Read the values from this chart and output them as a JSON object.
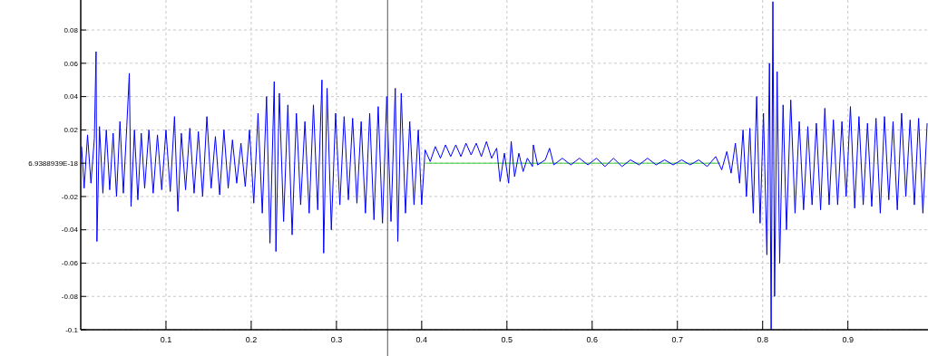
{
  "chart_data": {
    "type": "line",
    "xlim": [
      0,
      0.994
    ],
    "ylim": [
      -0.1,
      0.098
    ],
    "xticks": [
      0.1,
      0.2,
      0.3,
      0.4,
      0.5,
      0.6,
      0.7,
      0.8,
      0.9
    ],
    "yticks": [
      -0.1,
      -0.08,
      -0.06,
      -0.04,
      -0.02,
      {
        "value": 0,
        "label": "6.9388939E-18"
      },
      0.02,
      0.04,
      0.06,
      0.08
    ],
    "grid": true,
    "line_style": "solid",
    "marker": "none",
    "ref_lines": [
      {
        "axis": "x",
        "value": 0.36,
        "color": "#555555"
      }
    ],
    "series": [
      {
        "color": "#33cc33",
        "x": [
          0.405,
          0.75
        ],
        "values": [
          0,
          0
        ]
      },
      {
        "color": "#0000ff",
        "x": [
          0.001,
          0.004,
          0.008,
          0.012,
          0.016,
          0.018,
          0.019,
          0.022,
          0.026,
          0.03,
          0.034,
          0.038,
          0.042,
          0.046,
          0.05,
          0.054,
          0.057,
          0.059,
          0.063,
          0.067,
          0.071,
          0.075,
          0.08,
          0.085,
          0.09,
          0.095,
          0.1,
          0.105,
          0.11,
          0.114,
          0.118,
          0.123,
          0.128,
          0.133,
          0.138,
          0.143,
          0.148,
          0.153,
          0.158,
          0.163,
          0.168,
          0.173,
          0.178,
          0.183,
          0.188,
          0.193,
          0.198,
          0.203,
          0.208,
          0.213,
          0.218,
          0.222,
          0.227,
          0.229,
          0.233,
          0.238,
          0.243,
          0.248,
          0.253,
          0.258,
          0.263,
          0.268,
          0.273,
          0.278,
          0.283,
          0.285,
          0.289,
          0.294,
          0.299,
          0.304,
          0.309,
          0.314,
          0.319,
          0.324,
          0.329,
          0.334,
          0.339,
          0.344,
          0.349,
          0.354,
          0.359,
          0.364,
          0.369,
          0.372,
          0.376,
          0.381,
          0.386,
          0.391,
          0.396,
          0.4,
          0.404,
          0.41,
          0.416,
          0.422,
          0.428,
          0.434,
          0.44,
          0.446,
          0.452,
          0.458,
          0.464,
          0.47,
          0.476,
          0.482,
          0.488,
          0.492,
          0.497,
          0.502,
          0.505,
          0.509,
          0.514,
          0.519,
          0.524,
          0.53,
          0.531,
          0.536,
          0.545,
          0.55,
          0.555,
          0.565,
          0.575,
          0.585,
          0.595,
          0.605,
          0.615,
          0.625,
          0.635,
          0.645,
          0.655,
          0.665,
          0.675,
          0.685,
          0.695,
          0.705,
          0.715,
          0.725,
          0.735,
          0.745,
          0.752,
          0.758,
          0.763,
          0.768,
          0.773,
          0.777,
          0.781,
          0.785,
          0.789,
          0.793,
          0.797,
          0.801,
          0.805,
          0.808,
          0.81,
          0.812,
          0.814,
          0.817,
          0.82,
          0.824,
          0.828,
          0.833,
          0.838,
          0.843,
          0.848,
          0.853,
          0.858,
          0.863,
          0.868,
          0.873,
          0.878,
          0.883,
          0.888,
          0.893,
          0.898,
          0.903,
          0.908,
          0.913,
          0.918,
          0.923,
          0.928,
          0.933,
          0.938,
          0.943,
          0.948,
          0.953,
          0.958,
          0.963,
          0.968,
          0.973,
          0.978,
          0.983,
          0.988,
          0.993
        ],
        "values": [
          0.01,
          -0.015,
          0.017,
          -0.012,
          0.015,
          0.067,
          -0.047,
          0.022,
          -0.018,
          0.02,
          -0.016,
          0.018,
          -0.02,
          0.025,
          -0.018,
          0.022,
          0.054,
          -0.026,
          0.02,
          -0.022,
          0.018,
          -0.015,
          0.02,
          -0.018,
          0.017,
          -0.016,
          0.02,
          -0.017,
          0.028,
          -0.029,
          0.018,
          -0.016,
          0.021,
          -0.018,
          0.019,
          -0.02,
          0.028,
          -0.015,
          0.016,
          -0.019,
          0.02,
          -0.015,
          0.014,
          -0.012,
          0.012,
          -0.014,
          0.02,
          -0.024,
          0.03,
          -0.03,
          0.04,
          -0.048,
          0.049,
          -0.053,
          0.042,
          -0.035,
          0.035,
          -0.043,
          0.03,
          -0.025,
          0.025,
          -0.03,
          0.035,
          -0.028,
          0.05,
          -0.054,
          0.045,
          -0.04,
          0.03,
          -0.025,
          0.028,
          -0.022,
          0.027,
          -0.024,
          0.025,
          -0.03,
          0.03,
          -0.034,
          0.034,
          -0.036,
          0.04,
          -0.035,
          0.045,
          -0.047,
          0.042,
          -0.03,
          0.025,
          -0.025,
          0.02,
          -0.025,
          0.008,
          0.001,
          0.01,
          0.003,
          0.011,
          0.004,
          0.011,
          0.004,
          0.012,
          0.005,
          0.012,
          0.004,
          0.013,
          0.003,
          0.009,
          -0.011,
          0.006,
          -0.012,
          0.013,
          -0.008,
          0.006,
          -0.005,
          0.003,
          -0.002,
          0.011,
          -0.001,
          0.002,
          0.009,
          -0.001,
          0.003,
          -0.001,
          0.003,
          -0.001,
          0.003,
          -0.002,
          0.003,
          -0.002,
          0.002,
          -0.001,
          0.003,
          -0.001,
          0.002,
          -0.001,
          0.002,
          -0.001,
          0.002,
          -0.002,
          0.004,
          -0.004,
          0.007,
          -0.006,
          0.012,
          -0.012,
          0.02,
          -0.02,
          0.021,
          -0.03,
          0.04,
          -0.036,
          0.03,
          -0.055,
          0.06,
          -0.1,
          0.097,
          -0.08,
          0.055,
          -0.06,
          0.035,
          -0.04,
          0.038,
          -0.03,
          0.025,
          -0.028,
          0.022,
          -0.025,
          0.024,
          -0.028,
          0.033,
          -0.025,
          0.026,
          -0.025,
          0.025,
          -0.02,
          0.034,
          -0.027,
          0.028,
          -0.025,
          0.024,
          -0.026,
          0.027,
          -0.03,
          0.028,
          -0.022,
          0.025,
          -0.028,
          0.03,
          -0.02,
          0.026,
          -0.025,
          0.027,
          -0.03,
          0.024
        ]
      }
    ]
  }
}
